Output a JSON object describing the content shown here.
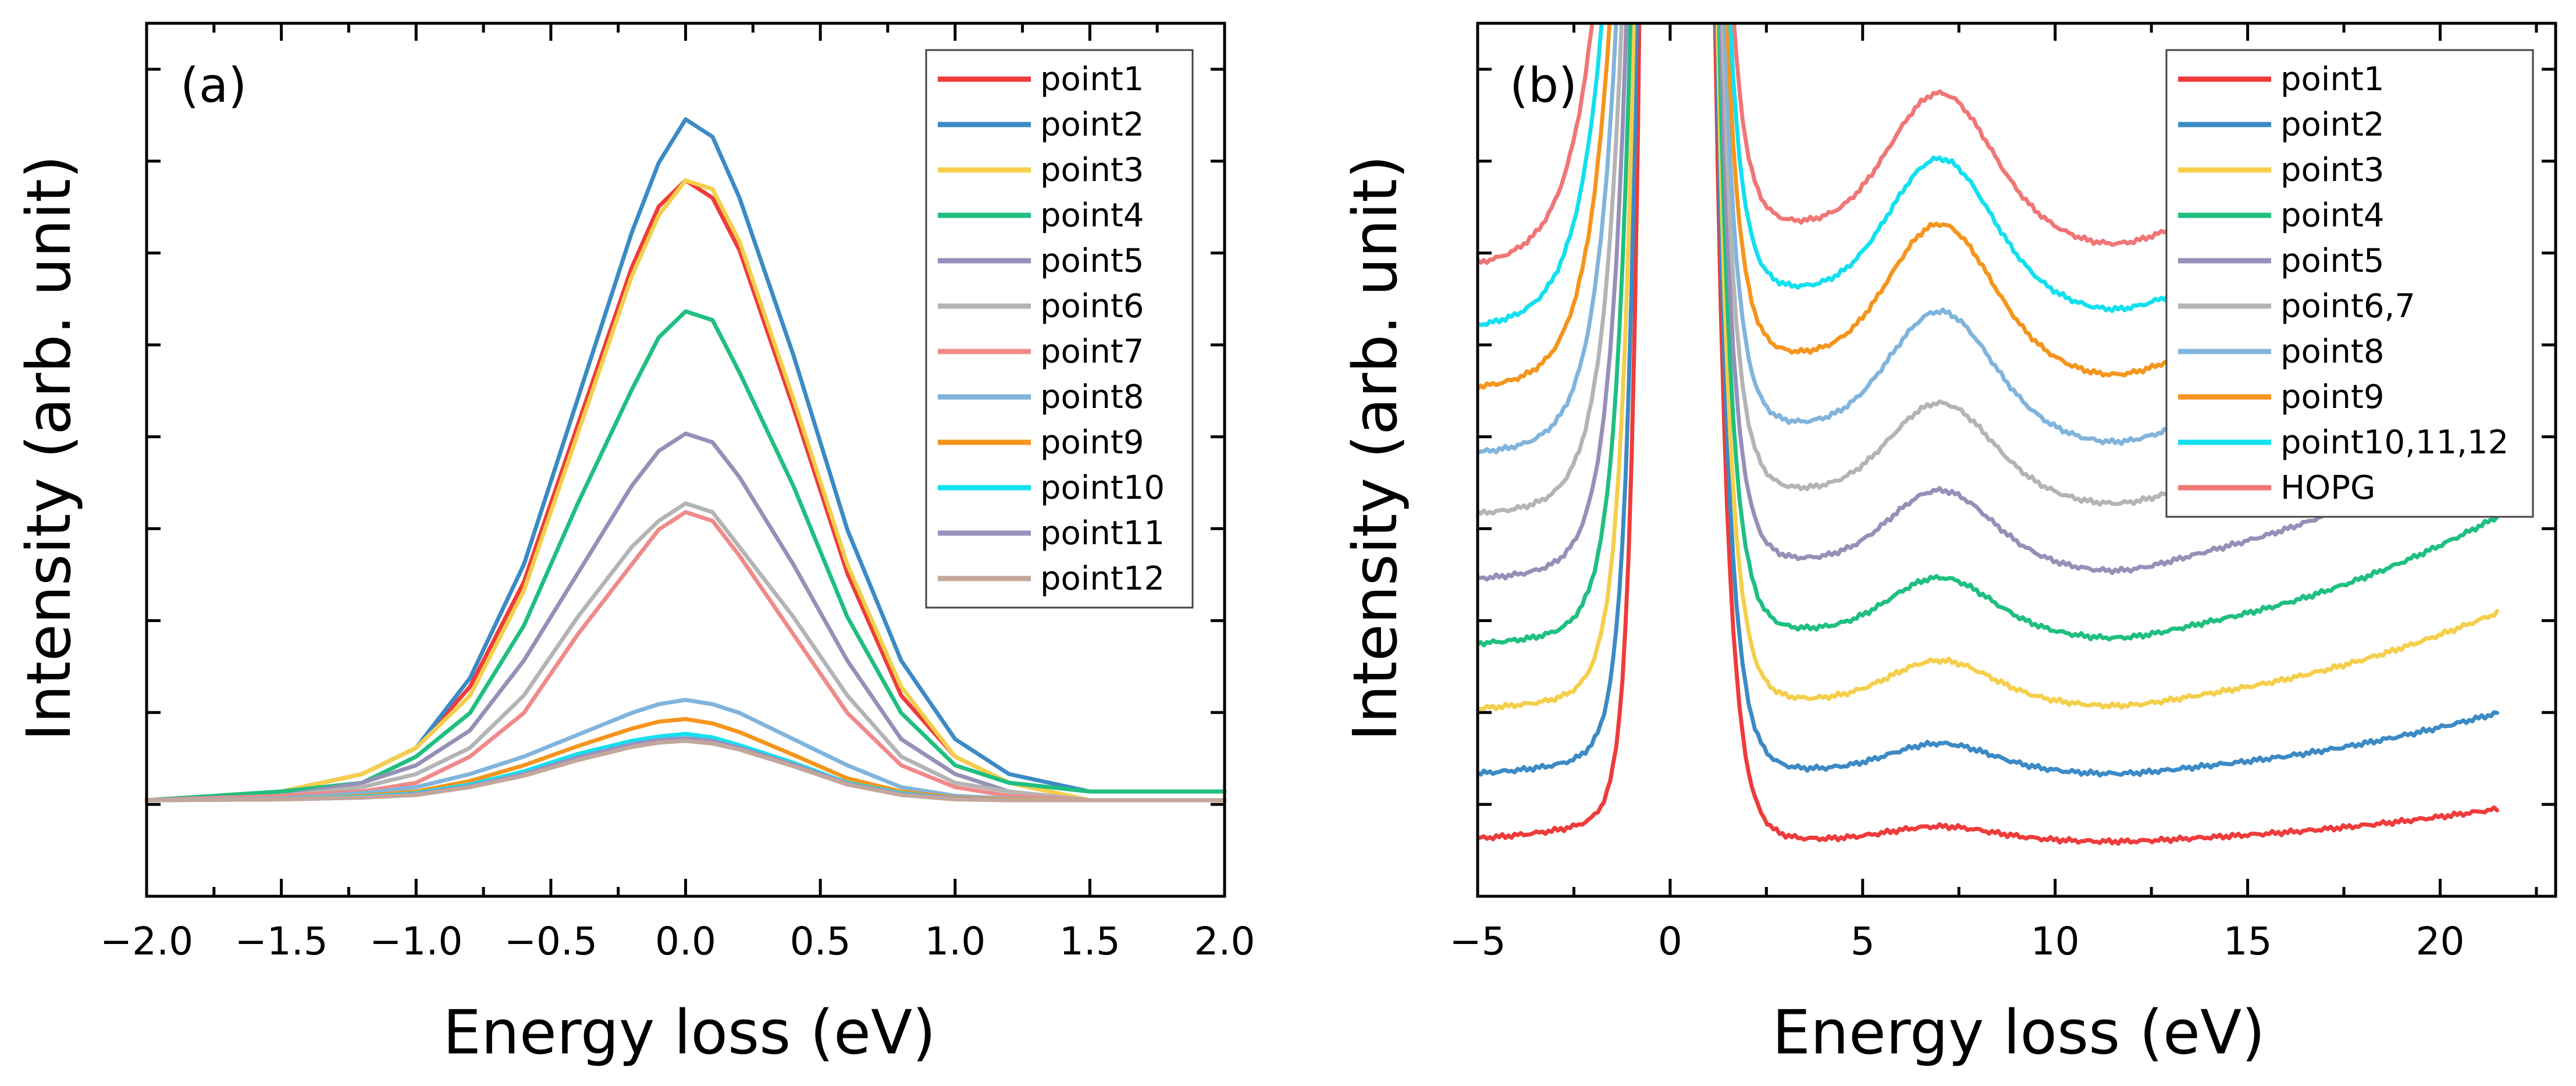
{
  "chart_data": [
    {
      "panel_label": "(a)",
      "type": "line",
      "xlabel": "Energy loss (eV)",
      "ylabel": "Intensity (arb. unit)",
      "xlim": [
        -2.0,
        2.0
      ],
      "ylim": [
        0,
        100
      ],
      "x_ticks": [
        "−2.0",
        "−1.5",
        "−1.0",
        "−0.5",
        "0.0",
        "0.5",
        "1.0",
        "1.5",
        "2.0"
      ],
      "x_tick_values": [
        -2.0,
        -1.5,
        -1.0,
        -0.5,
        0.0,
        0.5,
        1.0,
        1.5,
        2.0
      ],
      "y_tick_labels_visible": false,
      "legend_position": "top-right",
      "x": [
        -2.0,
        -1.5,
        -1.2,
        -1.0,
        -0.8,
        -0.6,
        -0.4,
        -0.2,
        -0.1,
        0.0,
        0.1,
        0.2,
        0.4,
        0.6,
        0.8,
        1.0,
        1.2,
        1.5,
        2.0
      ],
      "series": [
        {
          "name": "point1",
          "color": "#ef3b3b",
          "values": [
            11,
            12,
            14,
            17,
            24,
            36,
            54,
            72,
            79,
            82,
            80,
            74,
            56,
            37,
            23,
            16,
            13,
            11,
            11
          ]
        },
        {
          "name": "point2",
          "color": "#3b8ac6",
          "values": [
            11,
            12,
            14,
            17,
            25,
            38,
            57,
            76,
            84,
            89,
            87,
            80,
            62,
            42,
            27,
            18,
            14,
            12,
            12
          ]
        },
        {
          "name": "point3",
          "color": "#f5cf4b",
          "values": [
            11,
            12,
            14,
            17,
            23,
            35,
            53,
            71,
            78,
            82,
            81,
            75,
            57,
            38,
            24,
            16,
            13,
            11,
            11
          ]
        },
        {
          "name": "point4",
          "color": "#1fbf80",
          "values": [
            11,
            12,
            13,
            16,
            21,
            31,
            45,
            58,
            64,
            67,
            66,
            60,
            47,
            32,
            21,
            15,
            13,
            12,
            12
          ]
        },
        {
          "name": "point5",
          "color": "#9690b8",
          "values": [
            11,
            11.5,
            13,
            15,
            19,
            27,
            37,
            47,
            51,
            53,
            52,
            48,
            38,
            27,
            18,
            14,
            12,
            11,
            11
          ]
        },
        {
          "name": "point6",
          "color": "#b4b4b4",
          "values": [
            11,
            11.5,
            12.5,
            14,
            17,
            23,
            32,
            40,
            43,
            45,
            44,
            40,
            32,
            23,
            16,
            13,
            12,
            11,
            11
          ]
        },
        {
          "name": "point7",
          "color": "#f08a8a",
          "values": [
            11,
            11.5,
            12,
            13,
            16,
            21,
            30,
            38,
            42,
            44,
            43,
            39,
            30,
            21,
            15,
            12.5,
            11.5,
            11,
            11
          ]
        },
        {
          "name": "point8",
          "color": "#80b4dc",
          "values": [
            11,
            11.2,
            11.8,
            12.5,
            14,
            16,
            18.5,
            21,
            22,
            22.5,
            22,
            21,
            18,
            15,
            12.5,
            11.5,
            11.2,
            11,
            11
          ]
        },
        {
          "name": "point9",
          "color": "#f5951d",
          "values": [
            11,
            11.1,
            11.5,
            12,
            13.2,
            15,
            17.2,
            19.2,
            20,
            20.3,
            19.8,
            18.8,
            16.2,
            13.5,
            12,
            11.3,
            11.1,
            11,
            11
          ]
        },
        {
          "name": "point10",
          "color": "#12e0ef",
          "values": [
            11,
            11.1,
            11.4,
            11.8,
            12.8,
            14.3,
            16.3,
            17.8,
            18.3,
            18.6,
            18.2,
            17.3,
            15.3,
            13,
            11.8,
            11.2,
            11,
            11,
            11
          ]
        },
        {
          "name": "point11",
          "color": "#9892c0",
          "values": [
            11,
            11.1,
            11.3,
            11.7,
            12.6,
            14,
            15.9,
            17.4,
            17.9,
            18.1,
            17.8,
            17,
            15.1,
            12.9,
            11.7,
            11.2,
            11,
            11,
            11
          ]
        },
        {
          "name": "point12",
          "color": "#c3a79a",
          "values": [
            11,
            11.1,
            11.3,
            11.6,
            12.5,
            13.8,
            15.6,
            17.1,
            17.6,
            17.8,
            17.5,
            16.8,
            14.9,
            12.8,
            11.6,
            11.1,
            11,
            11,
            11
          ]
        }
      ]
    },
    {
      "panel_label": "(b)",
      "type": "line",
      "xlabel": "Energy loss (eV)",
      "ylabel": "Intensity (arb. unit)",
      "xlim": [
        -5,
        23
      ],
      "ylim": [
        0,
        100
      ],
      "x_ticks": [
        "−5",
        "0",
        "5",
        "10",
        "15",
        "20"
      ],
      "x_tick_values": [
        -5,
        0,
        5,
        10,
        15,
        20
      ],
      "y_tick_labels_visible": false,
      "legend_position": "top-right",
      "curve_params_note": "offset-stacked spectra: zero-loss peak near 0 eV, plasmon near 7 eV",
      "series": [
        {
          "name": "point1",
          "color": "#ef3b3b",
          "base": 6.5,
          "bump": 1.5,
          "tail": 3.5
        },
        {
          "name": "point2",
          "color": "#3b8ac6",
          "base": 14.5,
          "bump": 3,
          "tail": 6.5
        },
        {
          "name": "point3",
          "color": "#f5cf4b",
          "base": 22.5,
          "bump": 4.5,
          "tail": 10
        },
        {
          "name": "point4",
          "color": "#1fbf80",
          "base": 30.5,
          "bump": 6,
          "tail": 13
        },
        {
          "name": "point5",
          "color": "#9690b8",
          "base": 38.5,
          "bump": 8,
          "tail": 15
        },
        {
          "name": "point6,7",
          "color": "#b4b4b4",
          "base": 46.5,
          "bump": 10,
          "tail": 15
        },
        {
          "name": "point8",
          "color": "#80b4dc",
          "base": 54,
          "bump": 13,
          "tail": 15
        },
        {
          "name": "point9",
          "color": "#f5951d",
          "base": 62,
          "bump": 15,
          "tail": 15
        },
        {
          "name": "point10,11,12",
          "color": "#12e0ef",
          "base": 69.5,
          "bump": 15,
          "tail": 14
        },
        {
          "name": "HOPG",
          "color": "#f07676",
          "base": 77,
          "bump": 15,
          "tail": 17
        }
      ]
    }
  ]
}
